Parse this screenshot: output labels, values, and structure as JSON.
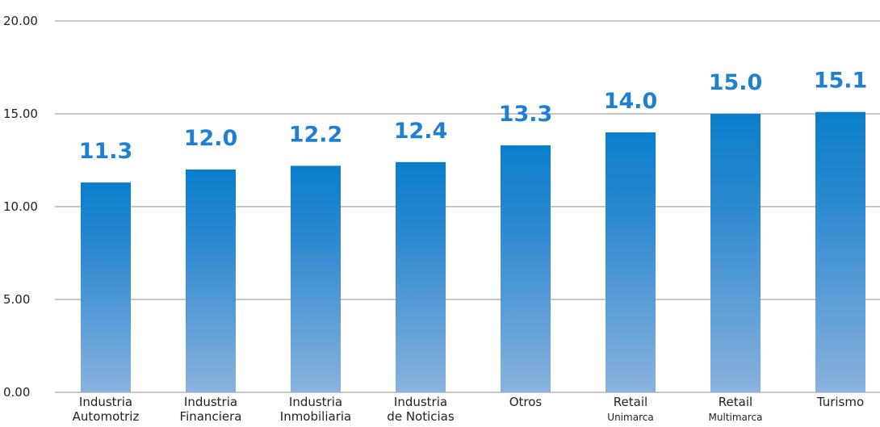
{
  "chart_data": {
    "type": "bar",
    "categories": [
      {
        "lines": [
          "Industria",
          "Automotriz"
        ],
        "small_second": false
      },
      {
        "lines": [
          "Industria",
          "Financiera"
        ],
        "small_second": false
      },
      {
        "lines": [
          "Industria",
          "Inmobiliaria"
        ],
        "small_second": false
      },
      {
        "lines": [
          "Industria",
          "de Noticias"
        ],
        "small_second": false
      },
      {
        "lines": [
          "Otros"
        ],
        "small_second": false
      },
      {
        "lines": [
          "Retail",
          "Unimarca"
        ],
        "small_second": true
      },
      {
        "lines": [
          "Retail",
          "Multimarca"
        ],
        "small_second": true
      },
      {
        "lines": [
          "Turismo"
        ],
        "small_second": false
      }
    ],
    "values": [
      11.3,
      12.0,
      12.2,
      12.4,
      13.3,
      14.0,
      15.0,
      15.1
    ],
    "value_labels": [
      "11.3",
      "12.0",
      "12.2",
      "12.4",
      "13.3",
      "14.0",
      "15.0",
      "15.1"
    ],
    "yticks": [
      "0.00",
      "5.00",
      "10.00",
      "15.00",
      "20.00"
    ],
    "ytick_values": [
      0,
      5,
      10,
      15,
      20
    ],
    "ylim": [
      0,
      20
    ],
    "grid": true,
    "title": "",
    "xlabel": "",
    "ylabel": "",
    "colors": {
      "bar_top": "#0a7ecb",
      "bar_bottom": "#8ab2de",
      "value_label": "#1f7fd0",
      "grid": "#8c8c8c",
      "axis_text": "#222222"
    }
  }
}
